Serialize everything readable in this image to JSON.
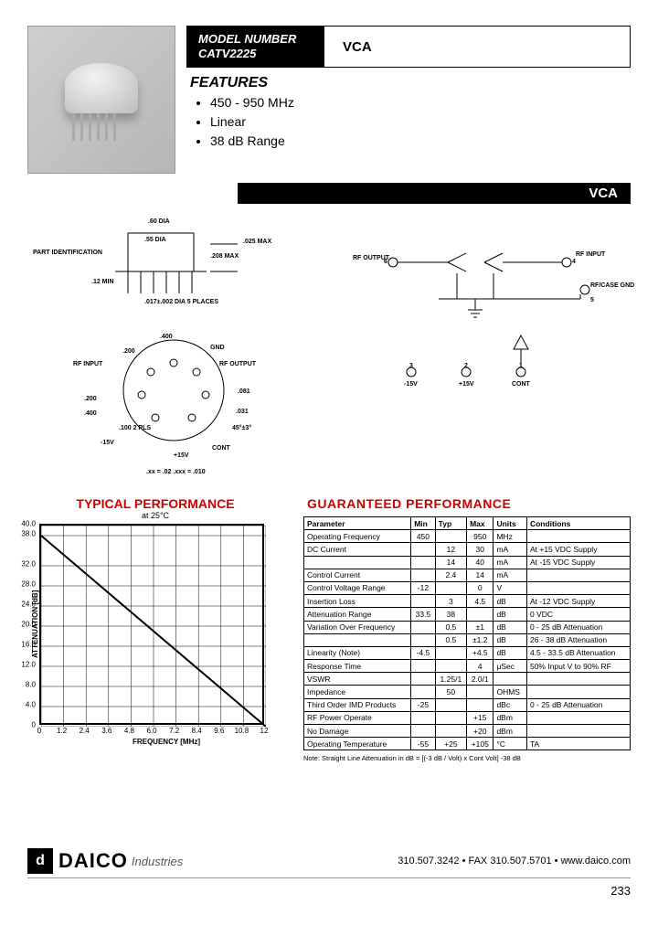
{
  "header": {
    "model_label": "MODEL NUMBER",
    "model_number": "CATV2225",
    "product_type": "VCA"
  },
  "features": {
    "heading": "FEATURES",
    "items": [
      "450 - 950 MHz",
      "Linear",
      "38 dB Range"
    ]
  },
  "section_bar": "VCA",
  "mech": {
    "part_id": "PART IDENTIFICATION",
    "dia60": ".60 DIA",
    "dia55": ".55 DIA",
    "min12": ".12 MIN",
    "max208": ".208 MAX",
    "max025": ".025 MAX",
    "pin_dia": ".017±.002 DIA 5 PLACES",
    "rf_input": "RF INPUT",
    "rf_output": "RF OUTPUT",
    "gnd": "GND",
    "d400": ".400",
    "d200a": ".200",
    "d200b": ".200",
    "d400b": ".400",
    "d081": ".081",
    "d031": ".031",
    "ang45": "45°±3°",
    "cont": "CONT",
    "p15v": "+15V",
    "m15v": "-15V",
    "pls": ".100 2 PLS",
    "tol": ".xx = .02   .xxx = .010"
  },
  "schem": {
    "rf_out": "RF OUTPUT",
    "rf_in": "RF INPUT",
    "rfcase": "RF/CASE GND",
    "m15v": "-15V",
    "p15v": "+15V",
    "cont": "CONT",
    "p6": "6",
    "p4": "4",
    "p5": "5",
    "p3": "3",
    "p2": "2",
    "p1": "1"
  },
  "chart": {
    "title": "TYPICAL PERFORMANCE",
    "subtitle": "at 25°C",
    "ylabel": "ATTENUATION [dB]",
    "xlabel": "FREQUENCY [MHz]",
    "yticks": [
      "40.0",
      "38.0",
      "32.0",
      "28.0",
      "24.0",
      "20.0",
      "16.0",
      "12.0",
      "8.0",
      "4.0",
      "0"
    ],
    "ytick_vals": [
      40,
      38,
      32,
      28,
      24,
      20,
      16,
      12,
      8,
      4,
      0
    ],
    "xticks": [
      "0",
      "1.2",
      "2.4",
      "3.6",
      "4.8",
      "6.0",
      "7.2",
      "8.4",
      "9.6",
      "10.8",
      "12"
    ],
    "xtick_vals": [
      0,
      1.2,
      2.4,
      3.6,
      4.8,
      6.0,
      7.2,
      8.4,
      9.6,
      10.8,
      12
    ],
    "xlim": [
      0,
      12
    ],
    "ylim": [
      0,
      40
    ],
    "line": [
      [
        0,
        38
      ],
      [
        12,
        0
      ]
    ],
    "line_color": "#000000",
    "line_width": 2,
    "grid_color": "#000000",
    "background": "#ffffff"
  },
  "table": {
    "title": "GUARANTEED PERFORMANCE",
    "headers": [
      "Parameter",
      "Min",
      "Typ",
      "Max",
      "Units",
      "Conditions"
    ],
    "rows": [
      [
        "Operating Frequency",
        "450",
        "",
        "950",
        "MHz",
        ""
      ],
      [
        "DC Current",
        "",
        "12",
        "30",
        "mA",
        "At +15 VDC Supply"
      ],
      [
        "",
        "",
        "14",
        "40",
        "mA",
        "At -15 VDC Supply"
      ],
      [
        "Control Current",
        "",
        "2.4",
        "14",
        "mA",
        ""
      ],
      [
        "Control Voltage Range",
        "-12",
        "",
        "0",
        "V",
        ""
      ],
      [
        "Insertion Loss",
        "",
        "3",
        "4.5",
        "dB",
        "At -12 VDC Supply"
      ],
      [
        "Attenuation Range",
        "33.5",
        "38",
        "",
        "dB",
        "0 VDC"
      ],
      [
        "Variation Over Frequency",
        "",
        "0.5",
        "±1",
        "dB",
        "0 - 25 dB Attenuation"
      ],
      [
        "",
        "",
        "0.5",
        "±1.2",
        "dB",
        "26 - 38 dB Attenuation"
      ],
      [
        "Linearity (Note)",
        "-4.5",
        "",
        "+4.5",
        "dB",
        "4.5 - 33.5 dB Attenuation"
      ],
      [
        "Response Time",
        "",
        "",
        "4",
        "μSec",
        "50% Input V to 90% RF"
      ],
      [
        "VSWR",
        "",
        "1.25/1",
        "2.0/1",
        "",
        ""
      ],
      [
        "Impedance",
        "",
        "50",
        "",
        "OHMS",
        ""
      ],
      [
        "Third Order IMD Products",
        "-25",
        "",
        "",
        "dBc",
        "0 - 25 dB Attenuation"
      ],
      [
        "RF Power          Operate",
        "",
        "",
        "+15",
        "dBm",
        ""
      ],
      [
        "                       No Damage",
        "",
        "",
        "+20",
        "dBm",
        ""
      ],
      [
        "Operating Temperature",
        "-55",
        "+25",
        "+105",
        "°C",
        "TA"
      ]
    ],
    "separators": [
      4,
      9,
      12,
      16
    ],
    "note": "Note: Straight Line Attenuation in dB = [(-3 dB / Volt) x Cont Volt] -38 dB"
  },
  "footer": {
    "logo_letter": "d",
    "company": "DAICO",
    "suffix": "Industries",
    "contact": "310.507.3242 • FAX 310.507.5701 • www.daico.com",
    "page": "233"
  }
}
